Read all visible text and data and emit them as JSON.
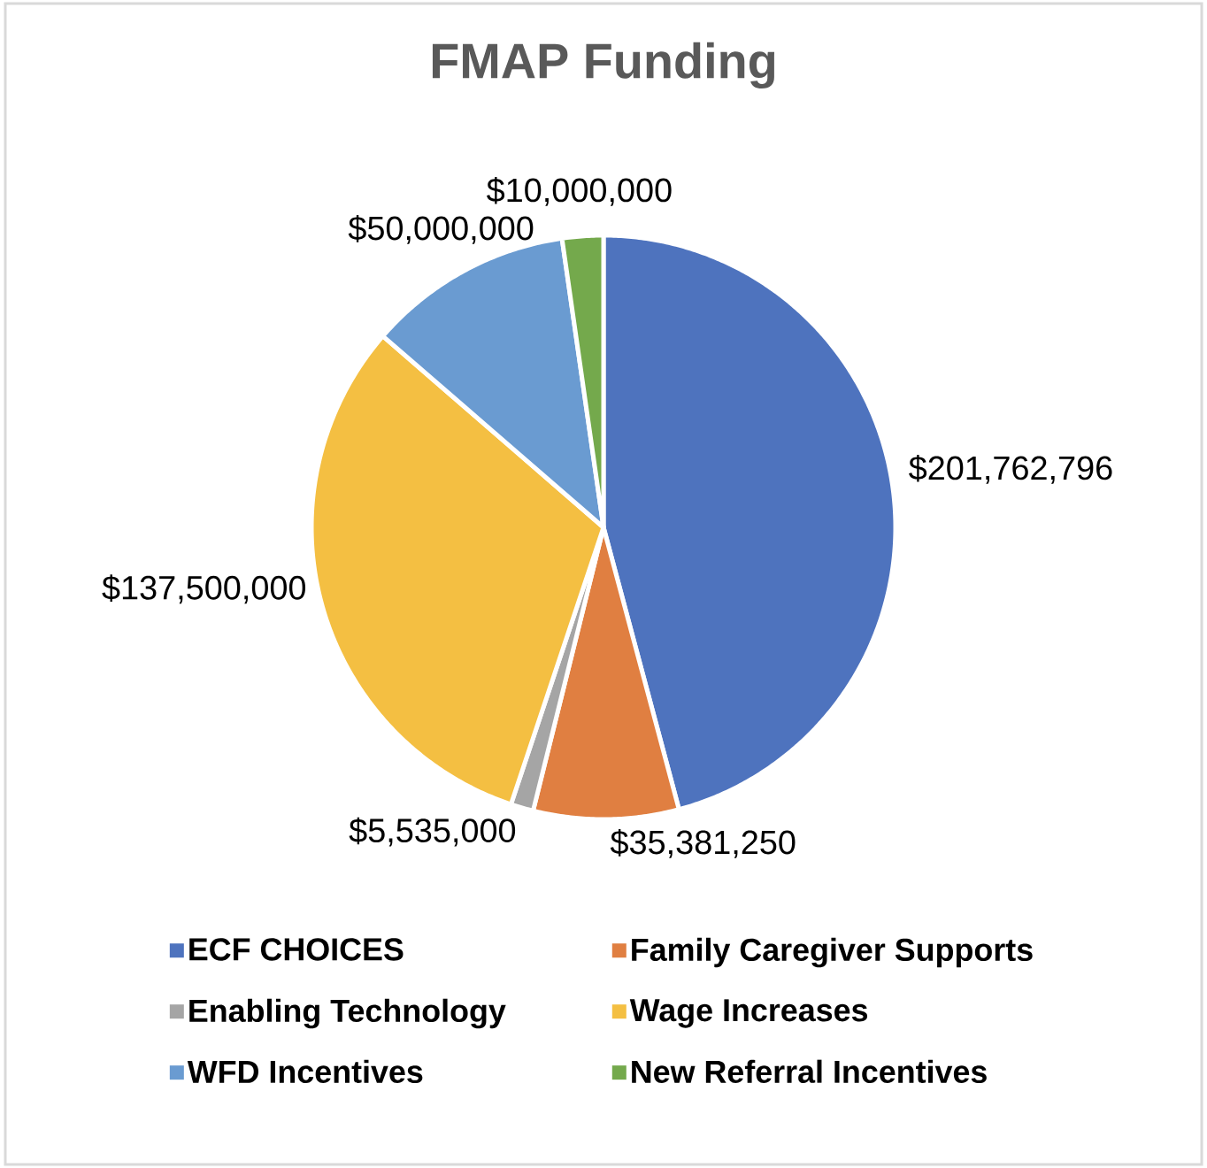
{
  "chart_data": {
    "type": "pie",
    "title": "FMAP Funding",
    "categories": [
      "ECF CHOICES",
      "Family Caregiver Supports",
      "Enabling Technology",
      "Wage Increases",
      "WFD Incentives",
      "New Referral Incentives"
    ],
    "values": [
      201762796,
      35381250,
      5535000,
      137500000,
      50000000,
      10000000
    ],
    "colors": [
      "#4e73be",
      "#e07f41",
      "#a5a5a5",
      "#f4bf42",
      "#6a9bd1",
      "#74a94c"
    ],
    "value_labels": [
      "$201,762,796",
      "$35,381,250",
      "$5,535,000",
      "$137,500,000",
      "$50,000,000",
      "$10,000,000"
    ],
    "legend": "bottom"
  }
}
